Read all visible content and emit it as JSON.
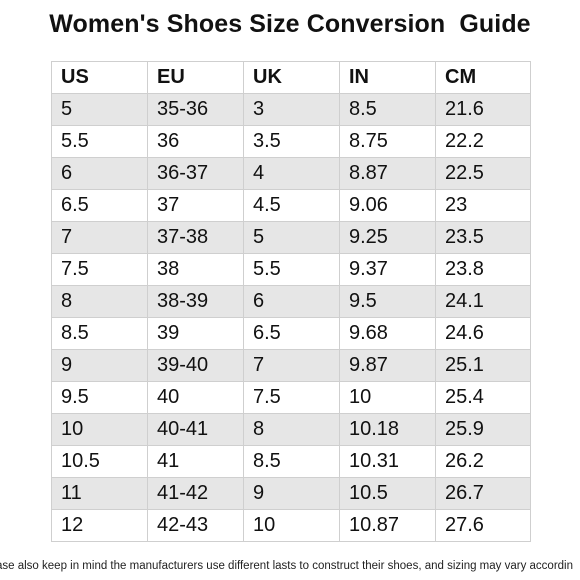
{
  "title": "Women's Shoes Size Conversion  Guide",
  "table": {
    "headers": [
      "US",
      "EU",
      "UK",
      "IN",
      "CM"
    ],
    "rows": [
      [
        "5",
        "35-36",
        "3",
        "8.5",
        "21.6"
      ],
      [
        "5.5",
        "36",
        "3.5",
        "8.75",
        "22.2"
      ],
      [
        "6",
        "36-37",
        "4",
        "8.87",
        "22.5"
      ],
      [
        "6.5",
        "37",
        "4.5",
        "9.06",
        "23"
      ],
      [
        "7",
        "37-38",
        "5",
        "9.25",
        "23.5"
      ],
      [
        "7.5",
        "38",
        "5.5",
        "9.37",
        "23.8"
      ],
      [
        "8",
        "38-39",
        "6",
        "9.5",
        "24.1"
      ],
      [
        "8.5",
        "39",
        "6.5",
        "9.68",
        "24.6"
      ],
      [
        "9",
        "39-40",
        "7",
        "9.87",
        "25.1"
      ],
      [
        "9.5",
        "40",
        "7.5",
        "10",
        "25.4"
      ],
      [
        "10",
        "40-41",
        "8",
        "10.18",
        "25.9"
      ],
      [
        "10.5",
        "41",
        "8.5",
        "10.31",
        "26.2"
      ],
      [
        "11",
        "41-42",
        "9",
        "10.5",
        "26.7"
      ],
      [
        "12",
        "42-43",
        "10",
        "10.87",
        "27.6"
      ]
    ]
  },
  "note": "ase also keep in mind the manufacturers use different lasts to construct their shoes, and sizing may vary accordin"
}
